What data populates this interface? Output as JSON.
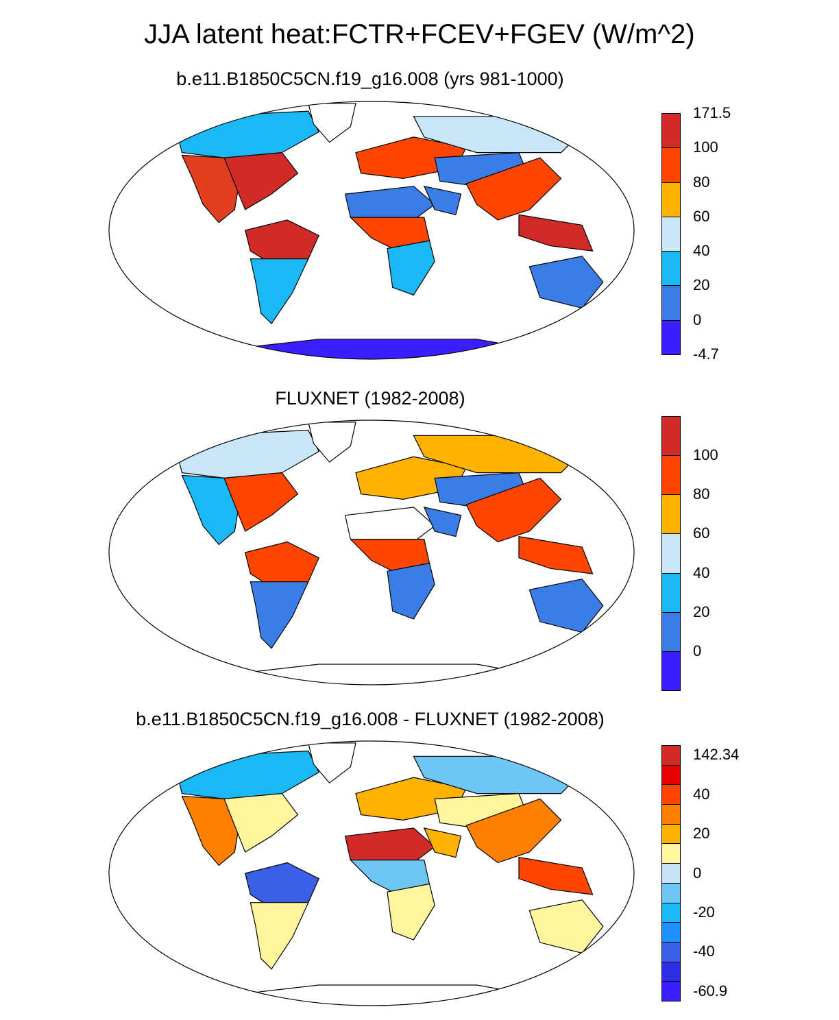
{
  "title": "JJA latent heat:FCTR+FCEV+FGEV (W/m^2)",
  "panels": [
    {
      "title": "b.e11.B1850C5CN.f19_g16.008 (yrs 981-1000)",
      "colorbar": {
        "colors": [
          "#d02a29",
          "#ff4500",
          "#ffb300",
          "#c8e6f5",
          "#1ab8f5",
          "#3b7de6",
          "#3c1fff"
        ],
        "labels": [
          "171.5",
          "100",
          "80",
          "60",
          "40",
          "20",
          "0",
          "-4.7"
        ]
      },
      "regions": {
        "north_america": "#e04020",
        "alaska_canada": "#1ab8f5",
        "eastern_na": "#d02a29",
        "amazon": "#d02a29",
        "south_america_south": "#1ab8f5",
        "africa_sahara": "#3b7de6",
        "africa_tropical": "#ff4500",
        "africa_south": "#1ab8f5",
        "europe": "#ff4500",
        "siberia": "#c8e6f5",
        "central_asia": "#3b7de6",
        "south_asia": "#ff4500",
        "southeast_asia": "#d02a29",
        "australia": "#3b7de6",
        "antarctica": "#3c1fff",
        "greenland": "#ffffff",
        "arabia": "#3b7de6"
      }
    },
    {
      "title": "FLUXNET (1982-2008)",
      "colorbar": {
        "colors": [
          "#d02a29",
          "#ff4500",
          "#ffb300",
          "#c8e6f5",
          "#1ab8f5",
          "#3b7de6",
          "#3c1fff"
        ],
        "labels": [
          "",
          "100",
          "80",
          "60",
          "40",
          "20",
          "0",
          ""
        ]
      },
      "regions": {
        "north_america": "#1ab8f5",
        "alaska_canada": "#c8e6f5",
        "eastern_na": "#ff4500",
        "amazon": "#ff4500",
        "south_america_south": "#3b7de6",
        "africa_sahara": "#ffffff",
        "africa_tropical": "#ff4500",
        "africa_south": "#3b7de6",
        "europe": "#ffb300",
        "siberia": "#ffb300",
        "central_asia": "#3b7de6",
        "south_asia": "#ff4500",
        "southeast_asia": "#ff4500",
        "australia": "#3b7de6",
        "antarctica": "#ffffff",
        "greenland": "#ffffff",
        "arabia": "#3b7de6"
      }
    },
    {
      "title": "b.e11.B1850C5CN.f19_g16.008 - FLUXNET (1982-2008)",
      "colorbar": {
        "colors": [
          "#d02a29",
          "#e60000",
          "#ff4500",
          "#ff8000",
          "#ffb300",
          "#fff59d",
          "#c6e2f5",
          "#6ec6f5",
          "#1ab8f5",
          "#1e90ff",
          "#3b5fe6",
          "#2e2ee6",
          "#3c1fff"
        ],
        "labels": [
          "142.34",
          "",
          "40",
          "",
          "20",
          "",
          "0",
          "",
          "-20",
          "",
          "-40",
          "",
          "-60.9"
        ]
      },
      "regions": {
        "north_america": "#ff8000",
        "alaska_canada": "#1ab8f5",
        "eastern_na": "#fff59d",
        "amazon": "#3b5fe6",
        "south_america_south": "#fff59d",
        "africa_sahara": "#d02a29",
        "africa_tropical": "#6ec6f5",
        "africa_south": "#fff59d",
        "europe": "#ffb300",
        "siberia": "#6ec6f5",
        "central_asia": "#fff59d",
        "south_asia": "#ff8000",
        "southeast_asia": "#ff4500",
        "australia": "#fff59d",
        "antarctica": "#ffffff",
        "greenland": "#ffffff",
        "arabia": "#ffb300"
      }
    }
  ]
}
